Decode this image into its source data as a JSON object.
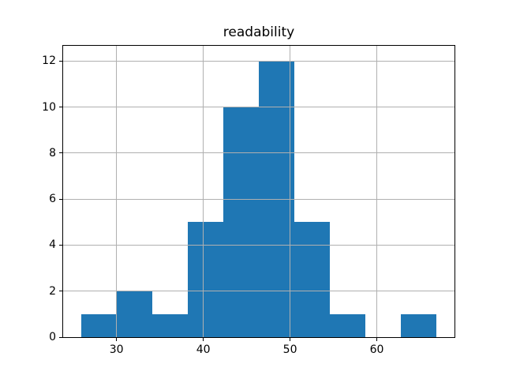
{
  "chart_data": {
    "type": "bar",
    "subtype": "histogram",
    "title": "readability",
    "bin_edges": [
      25.9,
      30.0,
      34.1,
      38.2,
      42.3,
      46.4,
      50.5,
      54.6,
      58.7,
      62.8,
      66.9
    ],
    "counts": [
      1,
      2,
      1,
      5,
      10,
      12,
      5,
      1,
      0,
      1
    ],
    "xticks": [
      30,
      40,
      50,
      60
    ],
    "yticks": [
      0,
      2,
      4,
      6,
      8,
      10,
      12
    ],
    "xlim": [
      23.85,
      68.95
    ],
    "ylim": [
      0,
      12.66
    ],
    "xlabel": "",
    "ylabel": "",
    "grid": true,
    "grid_above_bars": true,
    "colors": {
      "bar": "#1f77b4",
      "grid": "#b0b0b0",
      "spine": "#000000",
      "background": "#ffffff"
    }
  }
}
